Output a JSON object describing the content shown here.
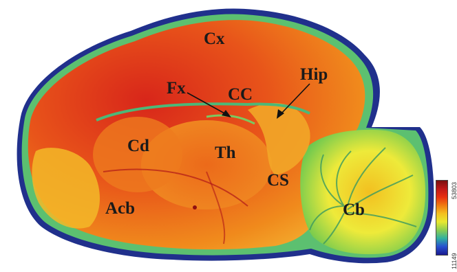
{
  "figure": {
    "labels": {
      "cx": "Cx",
      "fx": "Fx",
      "cc": "CC",
      "hip": "Hip",
      "cd": "Cd",
      "th": "Th",
      "cs": "CS",
      "acb": "Acb",
      "cb": "Cb"
    },
    "colorbar": {
      "max_label": "53803",
      "min_label": "11149",
      "colors": [
        "#7a1010",
        "#c01818",
        "#e83010",
        "#f07a10",
        "#f4c020",
        "#e8e830",
        "#8ccd50",
        "#30b0a0",
        "#2850d0",
        "#1a1a90"
      ]
    }
  }
}
